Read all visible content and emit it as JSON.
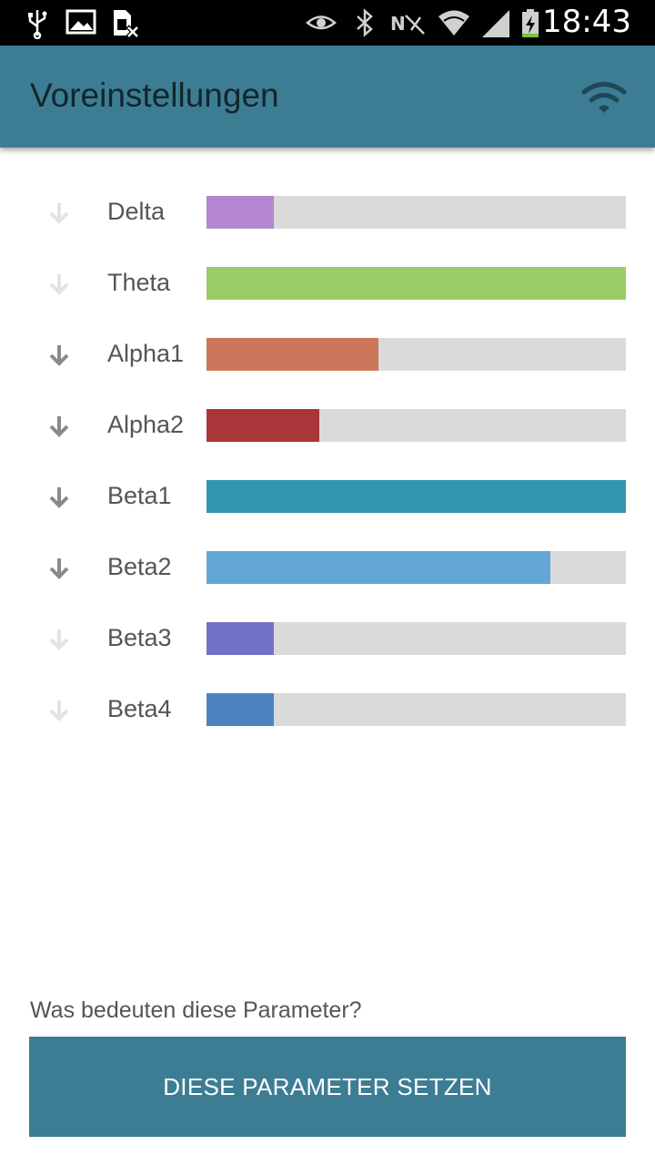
{
  "status_bar": {
    "time": "18:43",
    "left_icons": [
      "usb-icon",
      "image-icon",
      "sim-off-icon"
    ],
    "right_icons": [
      "eye-icon",
      "bluetooth-icon",
      "nfc-off-icon",
      "wifi-data-icon",
      "signal-icon",
      "battery-charging-icon"
    ]
  },
  "app_bar": {
    "title": "Voreinstellungen",
    "connection_icon": "wifi-icon"
  },
  "bands": [
    {
      "label": "Delta",
      "level": 0.16,
      "color": "#b386cf",
      "arrow_active": false
    },
    {
      "label": "Theta",
      "level": 1.0,
      "color": "#99cc66",
      "arrow_active": false
    },
    {
      "label": "Alpha1",
      "level": 0.41,
      "color": "#cc775b",
      "arrow_active": true
    },
    {
      "label": "Alpha2",
      "level": 0.27,
      "color": "#a9373a",
      "arrow_active": true
    },
    {
      "label": "Beta1",
      "level": 1.0,
      "color": "#3296ae",
      "arrow_active": true
    },
    {
      "label": "Beta2",
      "level": 0.82,
      "color": "#63a7d7",
      "arrow_active": true
    },
    {
      "label": "Beta3",
      "level": 0.16,
      "color": "#7273c7",
      "arrow_active": false
    },
    {
      "label": "Beta4",
      "level": 0.16,
      "color": "#4c84bf",
      "arrow_active": false
    }
  ],
  "colors": {
    "accent": "#3d7d94",
    "arrow_active": "#8a8a8a",
    "arrow_inactive": "#e3e3e3",
    "track": "#dadada"
  },
  "footer": {
    "help_text": "Was bedeuten diese Parameter?",
    "button_label": "DIESE PARAMETER SETZEN"
  }
}
